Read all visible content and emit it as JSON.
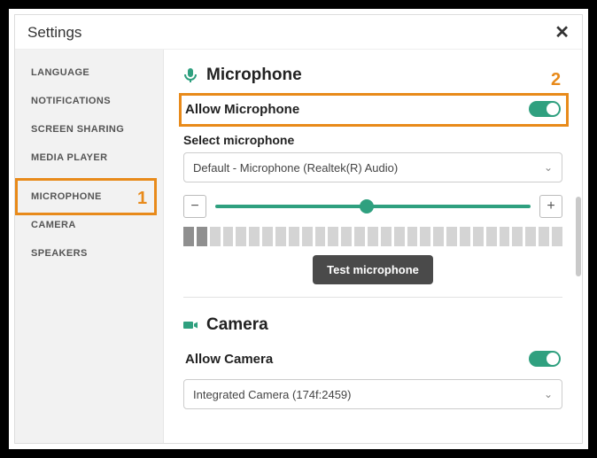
{
  "window": {
    "title": "Settings"
  },
  "accent": "#2fa07f",
  "highlight_color": "#e88a1a",
  "sidebar": {
    "items": [
      {
        "label": "LANGUAGE"
      },
      {
        "label": "NOTIFICATIONS"
      },
      {
        "label": "SCREEN SHARING"
      },
      {
        "label": "MEDIA PLAYER"
      },
      {
        "label": "MICROPHONE",
        "selected": true
      },
      {
        "label": "CAMERA"
      },
      {
        "label": "SPEAKERS"
      }
    ]
  },
  "callouts": {
    "one": "1",
    "two": "2"
  },
  "microphone": {
    "heading": "Microphone",
    "allow_label": "Allow Microphone",
    "allow_on": true,
    "select_label": "Select microphone",
    "selected_device": "Default - Microphone (Realtek(R) Audio)",
    "slider_pct": 48,
    "meter": {
      "bars_total": 29,
      "bars_active": 2
    },
    "test_label": "Test microphone",
    "minus": "−",
    "plus": "+"
  },
  "camera": {
    "heading": "Camera",
    "allow_label": "Allow Camera",
    "allow_on": true,
    "selected_device": "Integrated Camera (174f:2459)"
  }
}
